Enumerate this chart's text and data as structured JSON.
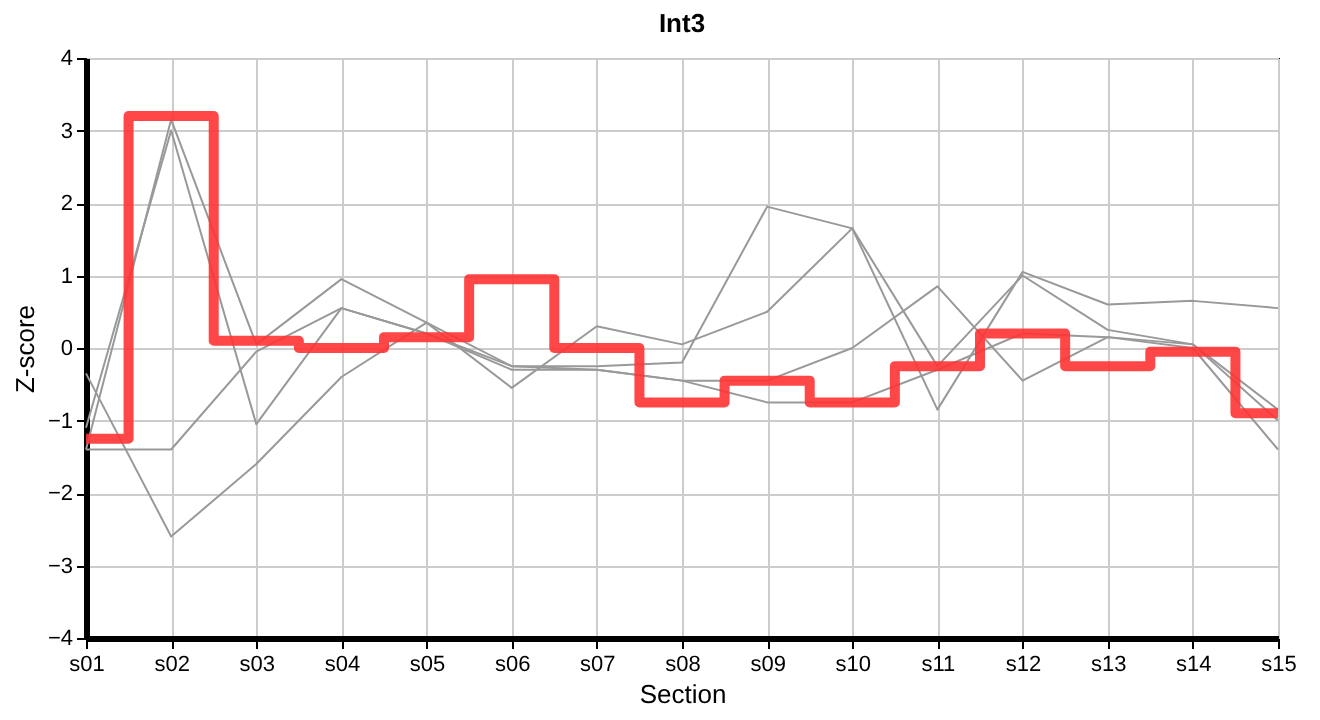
{
  "chart_data": {
    "type": "line",
    "title": "Int3",
    "xlabel": "Section",
    "ylabel": "Z-score",
    "categories": [
      "s01",
      "s02",
      "s03",
      "s04",
      "s05",
      "s06",
      "s07",
      "s08",
      "s09",
      "s10",
      "s11",
      "s12",
      "s13",
      "s14",
      "s15"
    ],
    "series": [
      {
        "color": "#999999",
        "values": [
          -1.1,
          3.0,
          -1.05,
          0.55,
          0.2,
          -0.25,
          -0.25,
          -0.2,
          1.95,
          1.65,
          -0.85,
          1.05,
          0.6,
          0.65,
          0.55
        ]
      },
      {
        "color": "#999999",
        "values": [
          -1.4,
          3.15,
          0.05,
          0.95,
          0.35,
          -0.55,
          0.3,
          0.05,
          0.5,
          1.65,
          -0.25,
          1.0,
          0.25,
          0.05,
          -0.85
        ]
      },
      {
        "color": "#999999",
        "values": [
          -1.4,
          -1.4,
          -0.05,
          0.55,
          0.2,
          -0.3,
          -0.3,
          -0.45,
          -0.45,
          0.0,
          0.85,
          -0.45,
          0.15,
          0.05,
          -1.0
        ]
      },
      {
        "color": "#999999",
        "values": [
          -0.35,
          -2.6,
          -1.6,
          -0.4,
          0.35,
          -0.25,
          -0.3,
          -0.45,
          -0.75,
          -0.75,
          -0.3,
          0.2,
          0.15,
          0.0,
          -1.4
        ]
      },
      {
        "type": "step",
        "color": "#ff3333",
        "values": [
          -1.25,
          3.2,
          0.1,
          0.0,
          0.15,
          0.95,
          0.0,
          -0.75,
          -0.45,
          -0.75,
          -0.25,
          0.2,
          -0.25,
          -0.05,
          -0.9
        ]
      }
    ],
    "ylim": [
      -4,
      4
    ],
    "yticks": [
      -4,
      -3,
      -2,
      -1,
      0,
      1,
      2,
      3,
      4
    ],
    "grid": true,
    "marker": "none"
  }
}
